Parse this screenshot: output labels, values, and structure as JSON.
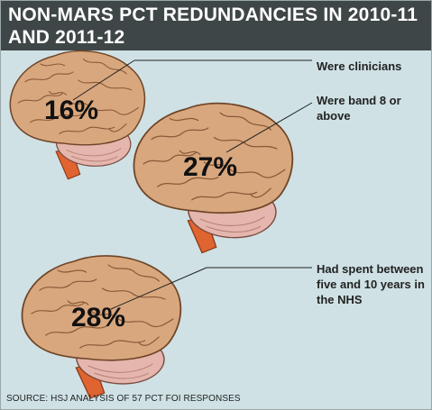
{
  "title_line1": "NON-MARS PCT REDUNDANCIES IN 2010-11",
  "title_line2": "AND 2011-12",
  "source": "SOURCE: HSJ ANALYSIS OF 57 PCT FOI RESPONSES",
  "colors": {
    "header": "#3f4647",
    "background": "#cfe1e4",
    "brain": "#d8a77e",
    "brain_fold": "#8a5a38",
    "cerebellum": "#e5b6ad",
    "stem": "#e0642f"
  },
  "chart_data": {
    "type": "pictogram",
    "title": "NON-MARS PCT REDUNDANCIES IN 2010-11 AND 2011-12",
    "unit": "%",
    "items": [
      {
        "value": 16,
        "value_label": "16%",
        "label": "Were clinicians"
      },
      {
        "value": 27,
        "value_label": "27%",
        "label": "Were band 8 or above"
      },
      {
        "value": 28,
        "value_label": "28%",
        "label": "Had spent between five and 10 years in the NHS"
      }
    ]
  }
}
